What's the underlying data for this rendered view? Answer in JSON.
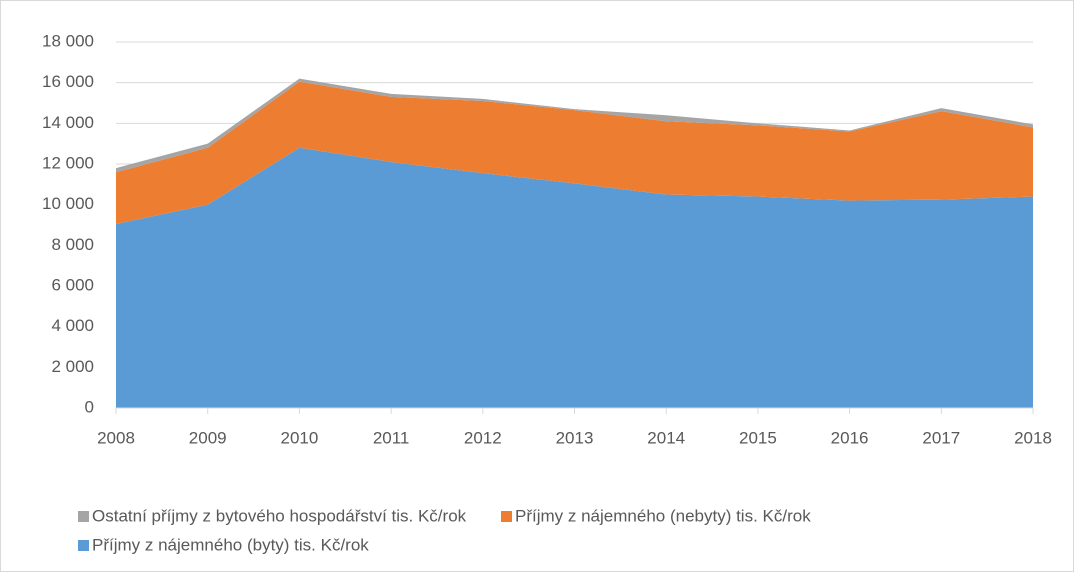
{
  "chart_data": {
    "type": "area",
    "stacked": true,
    "categories": [
      "2008",
      "2009",
      "2010",
      "2011",
      "2012",
      "2013",
      "2014",
      "2015",
      "2016",
      "2017",
      "2018"
    ],
    "series": [
      {
        "name": "Příjmy z nájemného (byty) tis. Kč/rok",
        "color": "#5b9bd5",
        "values": [
          9050,
          10000,
          12800,
          12100,
          11550,
          11050,
          10500,
          10400,
          10200,
          10250,
          10400
        ]
      },
      {
        "name": "Příjmy z nájemného (nebyty) tis. Kč/rok",
        "color": "#ed7d31",
        "values": [
          2550,
          2800,
          3250,
          3200,
          3550,
          3600,
          3600,
          3500,
          3400,
          4350,
          3400
        ]
      },
      {
        "name": "Ostatní příjmy z bytového hospodářství tis. Kč/rok",
        "color": "#a5a5a5",
        "values": [
          200,
          200,
          150,
          150,
          100,
          50,
          300,
          100,
          50,
          150,
          150
        ]
      }
    ],
    "ylim": [
      0,
      18000
    ],
    "yticks": [
      0,
      {
        "value": 2000,
        "label": "2 000"
      },
      {
        "value": 4000,
        "label": "4 000"
      },
      {
        "value": 6000,
        "label": "6 000"
      },
      {
        "value": 8000,
        "label": "8 000"
      },
      {
        "value": 10000,
        "label": "10 000"
      },
      {
        "value": 12000,
        "label": "12 000"
      },
      {
        "value": 14000,
        "label": "14 000"
      },
      {
        "value": 16000,
        "label": "16 000"
      },
      {
        "value": 18000,
        "label": "18 000"
      }
    ],
    "grid": true,
    "legend": "bottom"
  }
}
